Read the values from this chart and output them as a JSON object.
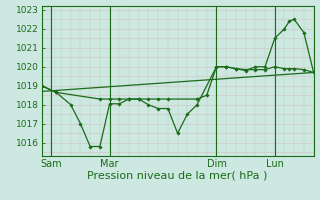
{
  "xlabel": "Pression niveau de la mer( hPa )",
  "background_color": "#cce8e0",
  "grid_color_h": "#d8c0c0",
  "grid_color_v": "#b8d4b8",
  "line_color": "#1a6b1a",
  "ylim": [
    1015.3,
    1023.2
  ],
  "xlim": [
    0,
    28
  ],
  "xtick_positions": [
    1,
    7,
    18,
    24
  ],
  "xtick_labels": [
    "Sam",
    "Mar",
    "Dim",
    "Lun"
  ],
  "ytick_positions": [
    1016,
    1017,
    1018,
    1019,
    1020,
    1021,
    1022,
    1023
  ],
  "ytick_labels": [
    "1016",
    "1017",
    "1018",
    "1019",
    "1020",
    "1021",
    "1022",
    "1023"
  ],
  "vlines": [
    1,
    7,
    18,
    24
  ],
  "hgrid_minor_step": 0.5,
  "vgrid_minor_count": 28,
  "line1_x": [
    0,
    1.5,
    3,
    4,
    5,
    6,
    7,
    8,
    9,
    10,
    11,
    12,
    13,
    14,
    15,
    16,
    18,
    19,
    20,
    21,
    22,
    23,
    24,
    25,
    25.5,
    26,
    27,
    28
  ],
  "line1_y": [
    1019.0,
    1018.65,
    1018.0,
    1017.0,
    1015.8,
    1015.8,
    1018.05,
    1018.05,
    1018.3,
    1018.3,
    1018.0,
    1017.8,
    1017.8,
    1016.5,
    1017.5,
    1018.0,
    1020.0,
    1020.0,
    1019.9,
    1019.8,
    1020.0,
    1020.0,
    1021.5,
    1022.0,
    1022.4,
    1022.5,
    1021.8,
    1019.7
  ],
  "line2_x": [
    0,
    1.5,
    6,
    7,
    8,
    9,
    10,
    11,
    12,
    13,
    16,
    17,
    18,
    19,
    20,
    21,
    22,
    23,
    24,
    25,
    25.5,
    26,
    27,
    28
  ],
  "line2_y": [
    1019.0,
    1018.65,
    1018.3,
    1018.3,
    1018.3,
    1018.3,
    1018.3,
    1018.3,
    1018.3,
    1018.3,
    1018.3,
    1018.5,
    1020.0,
    1020.0,
    1019.9,
    1019.85,
    1019.85,
    1019.85,
    1020.0,
    1019.9,
    1019.9,
    1019.9,
    1019.85,
    1019.7
  ],
  "trend_x": [
    0,
    28
  ],
  "trend_y": [
    1018.7,
    1019.7
  ],
  "fontsize_xlabel": 8,
  "fontsize_ytick": 6.5,
  "fontsize_xtick": 7
}
